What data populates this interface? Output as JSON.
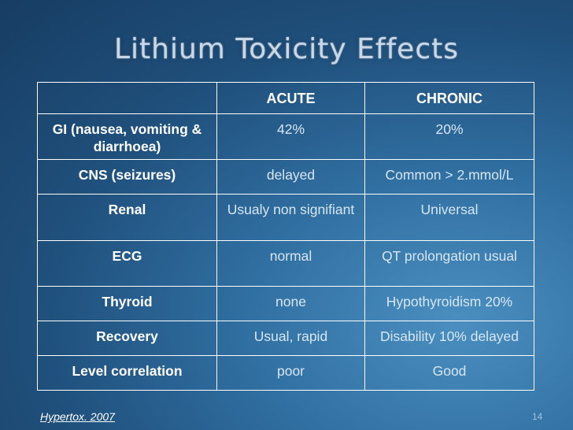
{
  "slide": {
    "title": "Lithium Toxicity Effects",
    "source": "Hypertox. 2007",
    "page_number": "14"
  },
  "table": {
    "header": {
      "corner": "",
      "acute": "ACUTE",
      "chronic": "CHRONIC"
    },
    "rows": [
      {
        "label": "GI (nausea, vomiting & diarrhoea)",
        "acute": "42%",
        "chronic": "20%"
      },
      {
        "label": "CNS (seizures)",
        "acute": "delayed",
        "chronic": "Common > 2.mmol/L"
      },
      {
        "label": "Renal",
        "acute": "Usualy non signifiant",
        "chronic": "Universal"
      },
      {
        "label": "ECG",
        "acute": "normal",
        "chronic": "QT prolongation usual"
      },
      {
        "label": "Thyroid",
        "acute": "none",
        "chronic": "Hypothyroidism 20%"
      },
      {
        "label": "Recovery",
        "acute": "Usual, rapid",
        "chronic": "Disability 10% delayed"
      },
      {
        "label": "Level correlation",
        "acute": "poor",
        "chronic": "Good"
      }
    ]
  }
}
